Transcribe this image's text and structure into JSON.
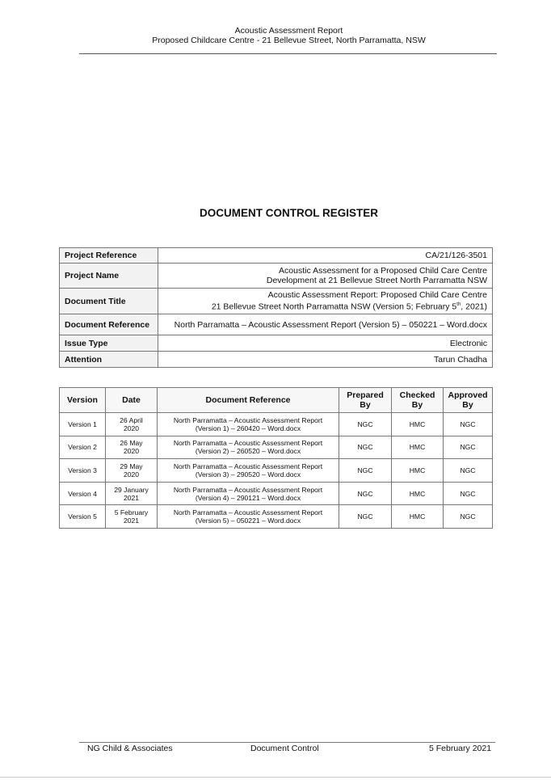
{
  "header": {
    "line1": "Acoustic Assessment Report",
    "line2": "Proposed Childcare Centre - 21 Bellevue Street, North Parramatta, NSW"
  },
  "title": "DOCUMENT CONTROL REGISTER",
  "control": [
    {
      "label": "Project Reference",
      "value": [
        "CA/21/126-3501"
      ]
    },
    {
      "label": "Project Name",
      "value": [
        "Acoustic Assessment for a Proposed Child Care Centre",
        "Development at 21 Bellevue Street North Parramatta  NSW"
      ]
    },
    {
      "label": "Document Title",
      "value": [
        "Acoustic Assessment Report: Proposed Child Care Centre",
        "21 Bellevue Street North Parramatta NSW (Version 5; February 5",
        "th",
        ", 2021)"
      ]
    },
    {
      "label": "Document Reference",
      "value": [
        "North Parramatta – Acoustic Assessment Report (Version 5) – 050221 – Word.docx"
      ]
    },
    {
      "label": "Issue Type",
      "value": [
        "Electronic"
      ]
    },
    {
      "label": "Attention",
      "value": [
        "Tarun Chadha"
      ]
    }
  ],
  "versions": {
    "headers": [
      [
        "Version"
      ],
      [
        "Date"
      ],
      [
        "Document Reference"
      ],
      [
        "Prepared",
        "By"
      ],
      [
        "Checked",
        "By"
      ],
      [
        "Approved",
        "By"
      ]
    ],
    "rows": [
      [
        [
          "Version 1"
        ],
        [
          "26 April",
          "2020"
        ],
        [
          "North Parramatta – Acoustic Assessment Report",
          "(Version 1) – 260420 – Word.docx"
        ],
        [
          "NGC"
        ],
        [
          "HMC"
        ],
        [
          "NGC"
        ]
      ],
      [
        [
          "Version 2"
        ],
        [
          "26 May",
          "2020"
        ],
        [
          "North Parramatta – Acoustic Assessment Report",
          "(Version 2) – 260520 – Word.docx"
        ],
        [
          "NGC"
        ],
        [
          "HMC"
        ],
        [
          "NGC"
        ]
      ],
      [
        [
          "Version 3"
        ],
        [
          "29 May",
          "2020"
        ],
        [
          "North Parramatta – Acoustic Assessment Report",
          "(Version 3) – 290520 – Word.docx"
        ],
        [
          "NGC"
        ],
        [
          "HMC"
        ],
        [
          "NGC"
        ]
      ],
      [
        [
          "Version 4"
        ],
        [
          "29 January",
          "2021"
        ],
        [
          "North Parramatta – Acoustic Assessment Report",
          "(Version 4) – 290121 – Word.docx"
        ],
        [
          "NGC"
        ],
        [
          "HMC"
        ],
        [
          "NGC"
        ]
      ],
      [
        [
          "Version 5"
        ],
        [
          "5 February",
          "2021"
        ],
        [
          "North Parramatta – Acoustic Assessment Report",
          "(Version 5) – 050221 – Word.docx"
        ],
        [
          "NGC"
        ],
        [
          "HMC"
        ],
        [
          "NGC"
        ]
      ]
    ]
  },
  "footer": {
    "left": "NG Child & Associates",
    "center": "Document Control",
    "right": "5 February 2021"
  }
}
